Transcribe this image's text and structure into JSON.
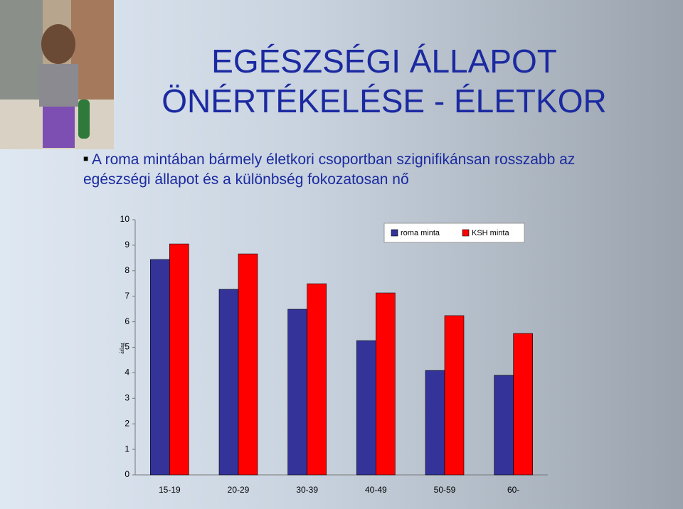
{
  "title": [
    "EGÉSZSÉGI ÁLLAPOT",
    "ÖNÉRTÉKELÉSE - ÉLETKOR"
  ],
  "bullet": [
    "A roma mintában bármely életkori csoportban szignifikánsan rosszabb az",
    "egészségi állapot és a különbség fokozatosan nő"
  ],
  "chart_data": {
    "type": "bar",
    "y_label": "átlag",
    "categories": [
      "15-19",
      "20-29",
      "30-39",
      "40-49",
      "50-59",
      "60-"
    ],
    "series": [
      {
        "name": "roma minta",
        "color": "#333399",
        "values": [
          8.44,
          7.27,
          6.49,
          5.26,
          4.09,
          3.9
        ]
      },
      {
        "name": "KSH minta",
        "color": "#ff0000",
        "values": [
          9.05,
          8.66,
          7.49,
          7.13,
          6.24,
          5.54
        ]
      }
    ],
    "ylim": [
      0,
      10
    ],
    "yticks": [
      0,
      1,
      2,
      3,
      4,
      5,
      6,
      7,
      8,
      9,
      10
    ],
    "legend": "top-right"
  }
}
